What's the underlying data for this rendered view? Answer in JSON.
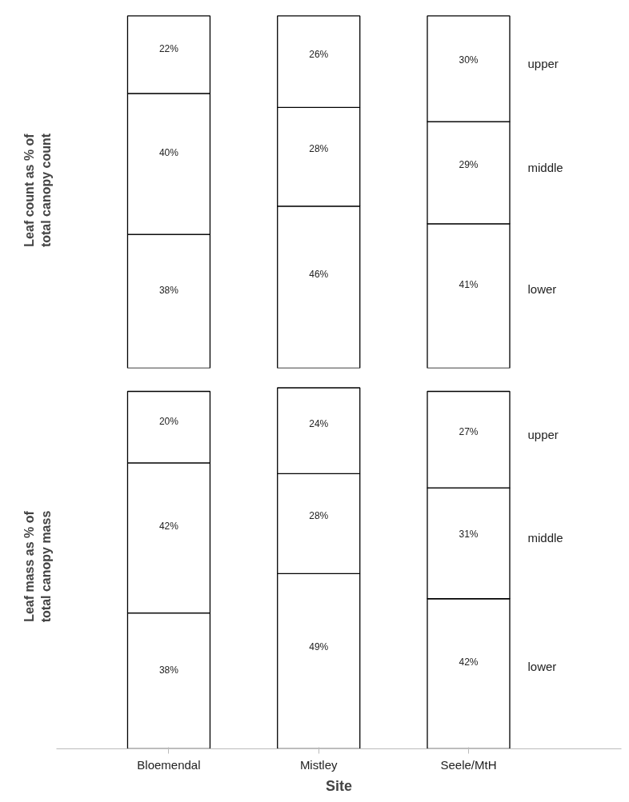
{
  "chart_data": [
    {
      "type": "bar",
      "stacked": true,
      "ylabel": "Leaf count as % of total canopy count",
      "categories": [
        null,
        null,
        null
      ],
      "tick_labels": false,
      "series": [
        {
          "name": "lower",
          "color": "#ffffff",
          "values": [
            38,
            46,
            41
          ],
          "value_labels": [
            "38%",
            "46%",
            "41%"
          ]
        },
        {
          "name": "middle",
          "color": "#ffffff",
          "values": [
            40,
            28,
            29
          ],
          "value_labels": [
            "40%",
            "28%",
            "29%"
          ]
        },
        {
          "name": "upper",
          "color": "#ffffff",
          "values": [
            22,
            26,
            30
          ],
          "value_labels": [
            "22%",
            "26%",
            "30%"
          ]
        }
      ]
    },
    {
      "type": "bar",
      "stacked": true,
      "ylabel": "Leaf mass as % of total canopy mass",
      "xlabel": "Site",
      "categories": [
        "Bloemendal",
        "Mistley",
        "Seele/MtH"
      ],
      "tick_labels": "x",
      "series": [
        {
          "name": "lower",
          "color": "#ffffff",
          "values": [
            38,
            49,
            42
          ],
          "value_labels": [
            "38%",
            "49%",
            "42%"
          ]
        },
        {
          "name": "middle",
          "color": "#ffffff",
          "values": [
            42,
            28,
            31
          ],
          "value_labels": [
            "42%",
            "28%",
            "31%"
          ]
        },
        {
          "name": "upper",
          "color": "#ffffff",
          "values": [
            20,
            24,
            27
          ],
          "value_labels": [
            "20%",
            "24%",
            "27%"
          ]
        }
      ]
    }
  ]
}
